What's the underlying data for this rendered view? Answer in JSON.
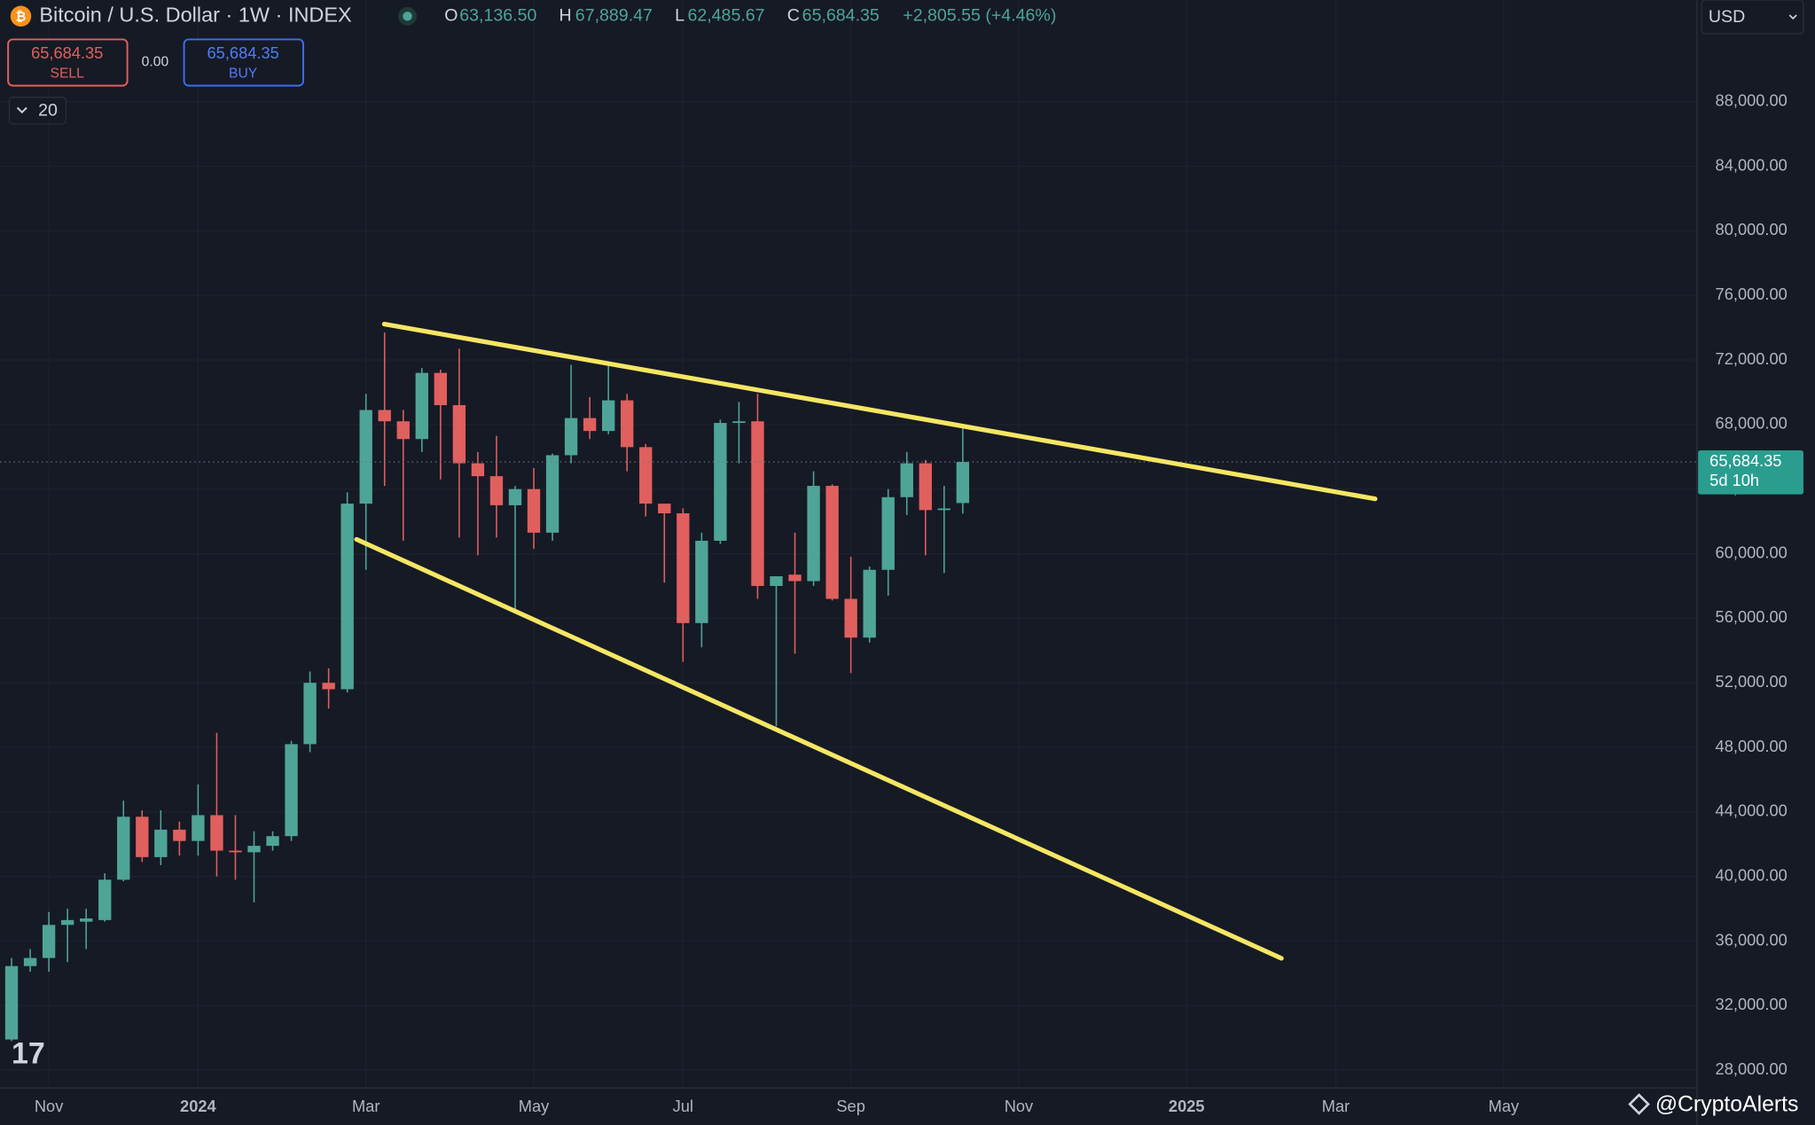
{
  "header": {
    "title": "Bitcoin / U.S. Dollar · 1W · INDEX",
    "ohlc": [
      {
        "key": "O",
        "value": "63,136.50"
      },
      {
        "key": "H",
        "value": "67,889.47"
      },
      {
        "key": "L",
        "value": "62,485.67"
      },
      {
        "key": "C",
        "value": "65,684.35"
      }
    ],
    "change": "+2,805.55 (+4.46%)"
  },
  "trade": {
    "sell_price": "65,684.35",
    "sell": "SELL",
    "spread": "0.00",
    "buy_price": "65,684.35",
    "buy": "BUY"
  },
  "indicator_count": "20",
  "currency": "USD",
  "watermark": "@CryptoAlerts",
  "chart_data": {
    "type": "candlestick",
    "categories": [
      null,
      null,
      null,
      null,
      null,
      null,
      null,
      null,
      null,
      null,
      null,
      null,
      null,
      null,
      null,
      null,
      null,
      null,
      null,
      null,
      null,
      null,
      null,
      null,
      null,
      null,
      null,
      null,
      null,
      null,
      null,
      null,
      null,
      null,
      null,
      null,
      null,
      null,
      null,
      null,
      null,
      null,
      null,
      null,
      null,
      null,
      null,
      null,
      null,
      null,
      null,
      null
    ],
    "open": [
      29900,
      34450,
      34950,
      37000,
      37200,
      37300,
      39800,
      43700,
      41200,
      42900,
      42200,
      43800,
      41600,
      41500,
      41900,
      42500,
      48200,
      52000,
      51600,
      63100,
      68900,
      68200,
      67100,
      71200,
      69200,
      65600,
      64800,
      63000,
      64000,
      61300,
      66100,
      68400,
      67600,
      69500,
      66600,
      63100,
      62500,
      55700,
      60800,
      68100,
      68200,
      58000,
      58700,
      58300,
      64200,
      57200,
      54800,
      59000,
      63500,
      65600,
      62700,
      63136.5
    ],
    "high": [
      34950,
      35500,
      37800,
      38000,
      38000,
      40200,
      44700,
      44100,
      44100,
      43400,
      45700,
      48900,
      43800,
      42800,
      42800,
      48400,
      52700,
      52900,
      63800,
      69900,
      73700,
      68900,
      71500,
      71400,
      72700,
      66300,
      67300,
      64200,
      65300,
      66200,
      71700,
      69700,
      71900,
      69900,
      66800,
      63100,
      62800,
      61300,
      68300,
      69400,
      69900,
      58600,
      61300,
      65100,
      64300,
      59800,
      59200,
      64000,
      66300,
      65800,
      64200,
      67889.47
    ],
    "low": [
      29800,
      34100,
      34100,
      34700,
      35500,
      37200,
      39700,
      40900,
      40700,
      41300,
      41300,
      40000,
      39800,
      38400,
      41600,
      42200,
      47700,
      50400,
      51400,
      59000,
      64200,
      60800,
      66300,
      64600,
      61000,
      59900,
      61000,
      56500,
      60300,
      60800,
      65600,
      67100,
      67400,
      65100,
      62300,
      58200,
      53300,
      54200,
      60600,
      65600,
      57200,
      49300,
      53800,
      58000,
      57100,
      52600,
      54500,
      57400,
      62400,
      59900,
      58800,
      62485.67
    ],
    "close": [
      34450,
      34950,
      37000,
      37300,
      37400,
      39800,
      43700,
      41200,
      42900,
      42200,
      43800,
      41600,
      41500,
      41900,
      42500,
      48200,
      52000,
      51600,
      63100,
      68900,
      68200,
      67100,
      71200,
      69200,
      65600,
      64800,
      63000,
      64000,
      61300,
      66100,
      68400,
      67600,
      69500,
      66600,
      63100,
      62500,
      55700,
      60800,
      68100,
      68200,
      58000,
      58600,
      58300,
      64200,
      57200,
      54800,
      59000,
      63500,
      65600,
      62700,
      62800,
      65684.35
    ],
    "up_color": "#4ea597",
    "down_color": "#e0605e",
    "price_label": "65,684.35",
    "countdown": "5d 10h",
    "xlim": [
      -0.62,
      90.3
    ],
    "xticks": [
      {
        "value": 2,
        "label": "Nov"
      },
      {
        "value": 10,
        "label": "2024"
      },
      {
        "value": 19,
        "label": "Mar"
      },
      {
        "value": 28,
        "label": "May"
      },
      {
        "value": 36,
        "label": "Jul"
      },
      {
        "value": 45,
        "label": "Sep"
      },
      {
        "value": 54,
        "label": "Nov"
      },
      {
        "value": 63,
        "label": "2025"
      },
      {
        "value": 71,
        "label": "Mar"
      },
      {
        "value": 80,
        "label": "May"
      }
    ],
    "ylim": [
      26900,
      94300
    ],
    "yticks": [
      {
        "value": 28000,
        "label": "28,000.00"
      },
      {
        "value": 32000,
        "label": "32,000.00"
      },
      {
        "value": 36000,
        "label": "36,000.00"
      },
      {
        "value": 40000,
        "label": "40,000.00"
      },
      {
        "value": 44000,
        "label": "44,000.00"
      },
      {
        "value": 48000,
        "label": "48,000.00"
      },
      {
        "value": 52000,
        "label": "52,000.00"
      },
      {
        "value": 56000,
        "label": "56,000.00"
      },
      {
        "value": 60000,
        "label": "60,000.00"
      },
      {
        "value": 64000,
        "label": "64,000.00"
      },
      {
        "value": 68000,
        "label": "68,000.00"
      },
      {
        "value": 72000,
        "label": "72,000.00"
      },
      {
        "value": 76000,
        "label": "76,000.00"
      },
      {
        "value": 80000,
        "label": "80,000.00"
      },
      {
        "value": 84000,
        "label": "84,000.00"
      },
      {
        "value": 88000,
        "label": "88,000.00"
      }
    ],
    "grid": true
  }
}
